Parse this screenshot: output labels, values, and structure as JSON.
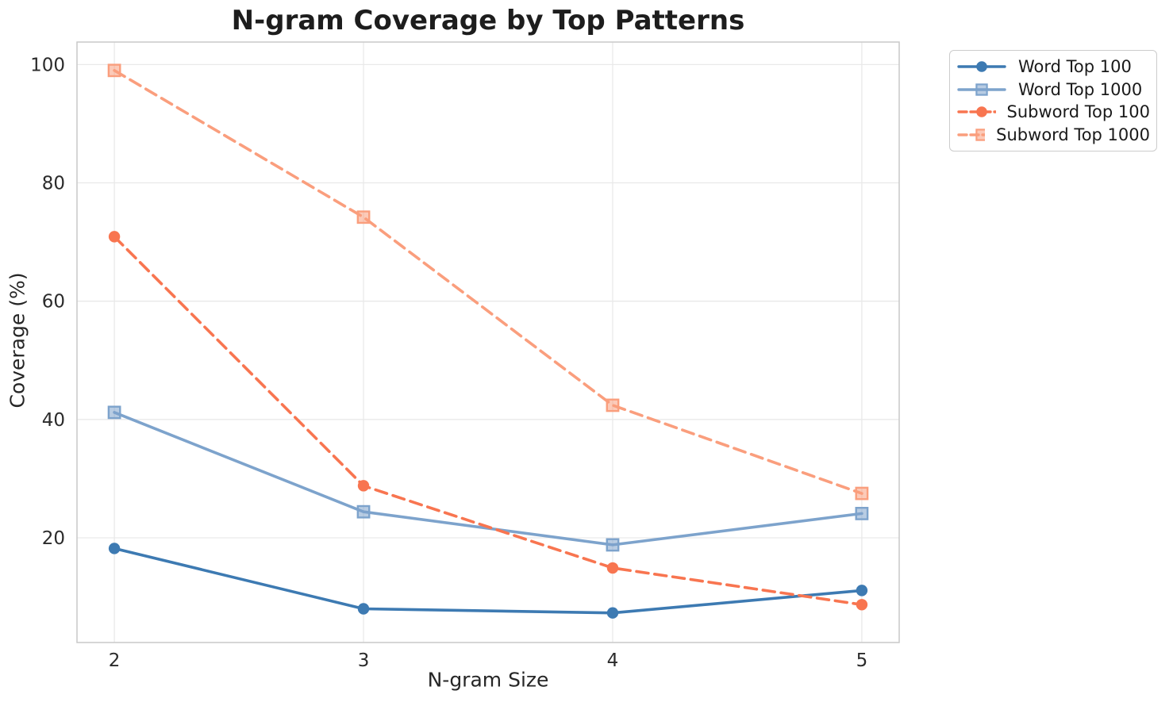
{
  "chart_data": {
    "type": "line",
    "title": "N-gram Coverage by Top Patterns",
    "xlabel": "N-gram Size",
    "ylabel": "Coverage (%)",
    "x": [
      2,
      3,
      4,
      5
    ],
    "xticks": [
      2,
      3,
      4,
      5
    ],
    "yticks": [
      20,
      40,
      60,
      80,
      100
    ],
    "xlim": [
      1.85,
      5.15
    ],
    "ylim": [
      2.3,
      103.8
    ],
    "grid": true,
    "legend_position": "outside-top-right",
    "series": [
      {
        "name": "Word Top 100",
        "color": "#3D7AB2",
        "linestyle": "solid",
        "marker": "circle",
        "values": [
          18.2,
          8.0,
          7.3,
          11.1
        ]
      },
      {
        "name": "Word Top 1000",
        "color": "#7DA3CC",
        "linestyle": "solid",
        "marker": "square",
        "values": [
          41.2,
          24.4,
          18.8,
          24.1
        ]
      },
      {
        "name": "Subword Top 100",
        "color": "#F87550",
        "linestyle": "dashed",
        "marker": "circle",
        "values": [
          70.9,
          28.8,
          14.9,
          8.7
        ]
      },
      {
        "name": "Subword Top 1000",
        "color": "#FA9E7D",
        "linestyle": "dashed",
        "marker": "square",
        "values": [
          99.0,
          74.2,
          42.4,
          27.5
        ]
      }
    ],
    "colors": {
      "grid": "#e9e9e9",
      "spine": "#c9c9c9",
      "tick_text": "#2b2b2b",
      "title_text": "#1d1d1d"
    }
  }
}
